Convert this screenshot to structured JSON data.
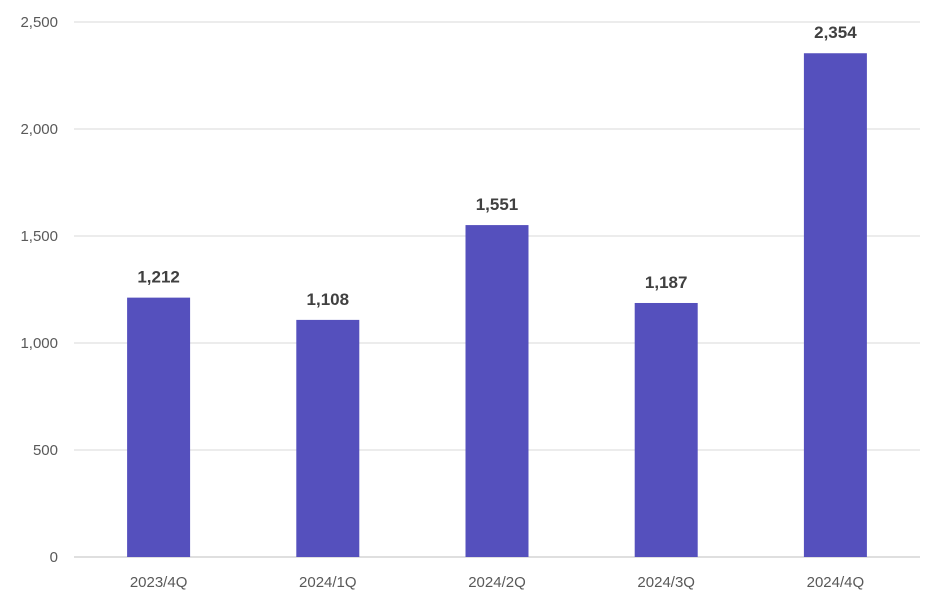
{
  "chart_data": {
    "type": "bar",
    "title": "",
    "xlabel": "",
    "ylabel": "",
    "categories": [
      "2023/4Q",
      "2024/1Q",
      "2024/2Q",
      "2024/3Q",
      "2024/4Q"
    ],
    "values": [
      1212,
      1108,
      1551,
      1187,
      2354
    ],
    "value_labels": [
      "1,212",
      "1,108",
      "1,551",
      "1,187",
      "2,354"
    ],
    "ylim": [
      0,
      2500
    ],
    "y_ticks": [
      0,
      500,
      1000,
      1500,
      2000,
      2500
    ],
    "y_tick_labels": [
      "0",
      "500",
      "1,000",
      "1,500",
      "2,000",
      "2,500"
    ],
    "grid": true,
    "legend": "none",
    "colors": {
      "bar": "#5550BD",
      "grid": "#D9D9D9",
      "axis_text": "#595959",
      "data_label": "#404040"
    }
  }
}
